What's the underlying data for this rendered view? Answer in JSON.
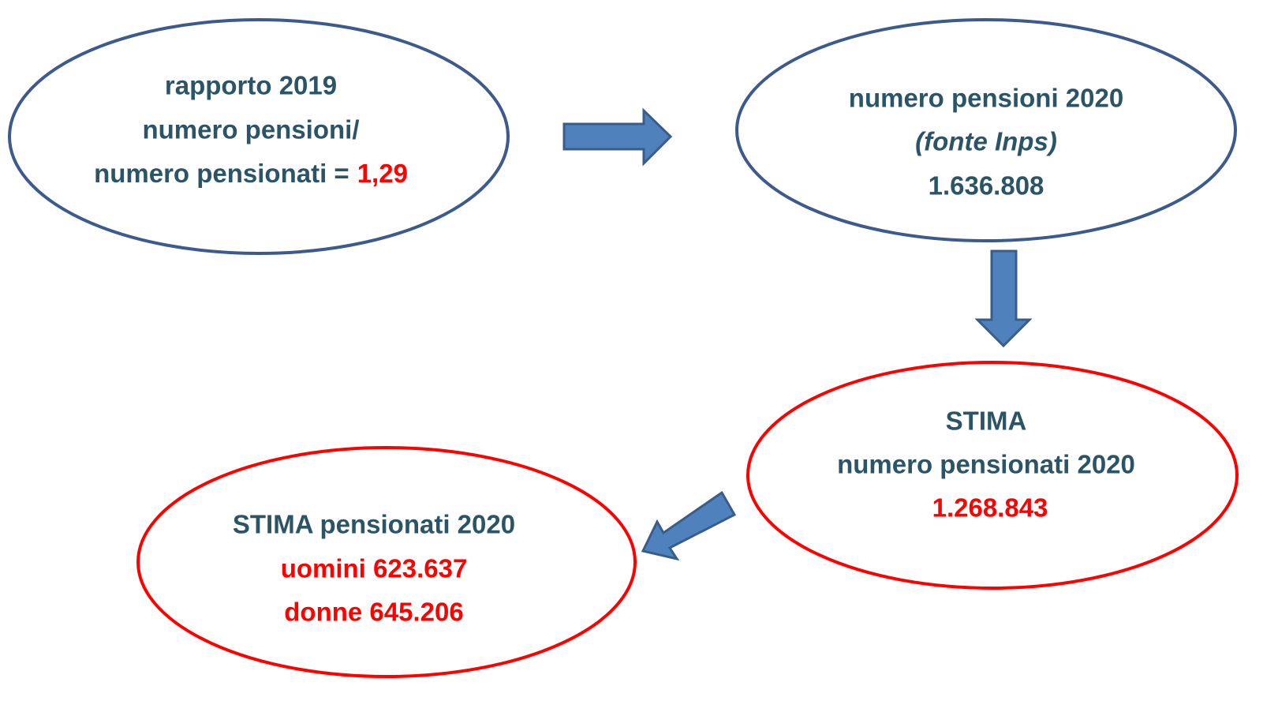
{
  "nodes": [
    {
      "lines": [
        "rapporto 2019",
        "numero pensioni/",
        "numero pensionati ="
      ],
      "value": "1,29"
    },
    {
      "lines": [
        "numero pensioni 2020",
        "(fonte Inps)",
        "1.636.808"
      ]
    },
    {
      "lines": [
        "STIMA",
        "numero pensionati 2020",
        "1.268.843"
      ]
    },
    {
      "lines": [
        "STIMA pensionati 2020",
        "uomini 623.637",
        "donne 645.206"
      ]
    }
  ]
}
